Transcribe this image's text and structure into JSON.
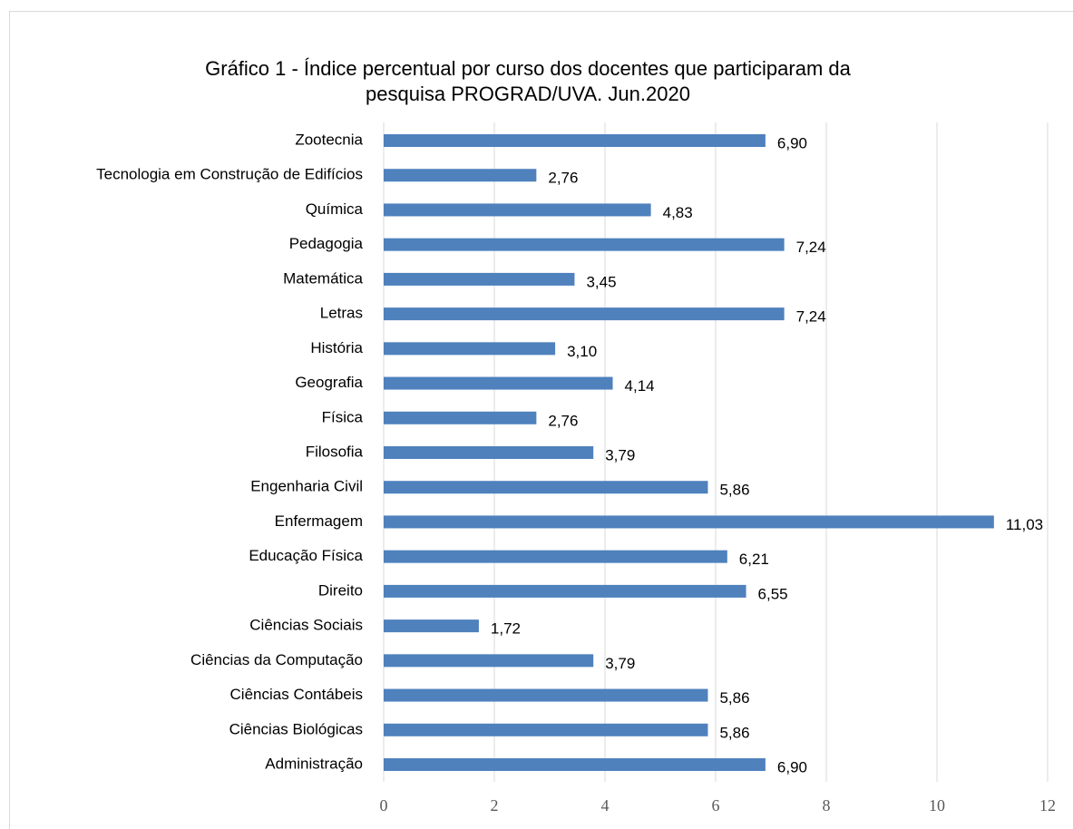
{
  "chart_data": {
    "type": "barh",
    "title": [
      "Gráfico 1 - Índice percentual por curso dos docentes que participaram da",
      "pesquisa PROGRAD/UVA. Jun.2020"
    ],
    "categories": [
      "Zootecnia",
      "Tecnologia em Construção de Edifícios",
      "Química",
      "Pedagogia",
      "Matemática",
      "Letras",
      "História",
      "Geografia",
      "Física",
      "Filosofia",
      "Engenharia Civil",
      "Enfermagem",
      "Educação Física",
      "Direito",
      "Ciências Sociais",
      "Ciências da Computação",
      "Ciências Contábeis",
      "Ciências Biológicas",
      "Administração"
    ],
    "values": [
      6.9,
      2.76,
      4.83,
      7.24,
      3.45,
      7.24,
      3.1,
      4.14,
      2.76,
      3.79,
      5.86,
      11.03,
      6.21,
      6.55,
      1.72,
      3.79,
      5.86,
      5.86,
      6.9
    ],
    "value_labels": [
      "6,90",
      "2,76",
      "4,83",
      "7,24",
      "3,45",
      "7,24",
      "3,10",
      "4,14",
      "2,76",
      "3,79",
      "5,86",
      "11,03",
      "6,21",
      "6,55",
      "1,72",
      "3,79",
      "5,86",
      "5,86",
      "6,90"
    ],
    "color": "#4f81bd",
    "xlim": [
      0,
      12
    ],
    "xticks": [
      0,
      2,
      4,
      6,
      8,
      10,
      12
    ],
    "grid": true
  }
}
